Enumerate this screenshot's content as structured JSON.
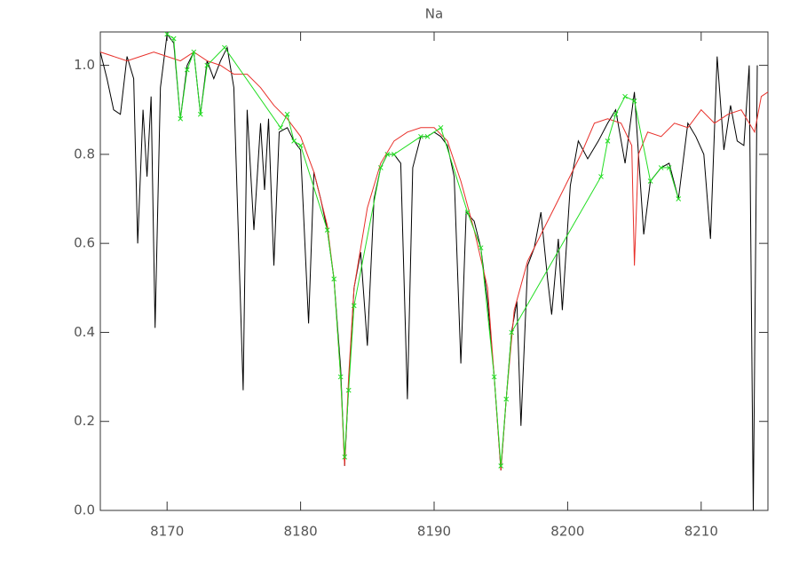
{
  "chart_data": {
    "type": "line",
    "title": "Na",
    "xlim": [
      8165,
      8215
    ],
    "xticks": [
      8170,
      8180,
      8190,
      8200,
      8210
    ],
    "ylim": [
      0,
      1.075
    ],
    "yticks": [
      {
        "value": 0,
        "label": "0.0"
      },
      0.2,
      0.4,
      0.6,
      0.8,
      {
        "value": 1,
        "label": "1.0"
      }
    ],
    "series": [
      {
        "color": "#000000",
        "x": [
          8165,
          8165.5,
          8166,
          8166.5,
          8167,
          8167.5,
          8167.8,
          8168.2,
          8168.5,
          8168.8,
          8169.1,
          8169.5,
          8170,
          8170.5,
          8171,
          8171.5,
          8172,
          8172.5,
          8173,
          8173.5,
          8174,
          8174.5,
          8175,
          8175.7,
          8176,
          8176.5,
          8177,
          8177.3,
          8177.6,
          8178,
          8178.4,
          8179,
          8179.5,
          8180,
          8180.6,
          8181,
          8181.5,
          8182,
          8182.5,
          8183,
          8183.3,
          8183.6,
          8184,
          8184.5,
          8185,
          8185.5,
          8186,
          8186.5,
          8187,
          8187.5,
          8188,
          8188.4,
          8189,
          8189.5,
          8190,
          8190.5,
          8191,
          8191.5,
          8192,
          8192.4,
          8193,
          8193.5,
          8194,
          8194.5,
          8195,
          8195.4,
          8195.8,
          8196.2,
          8196.5,
          8197,
          8197.5,
          8198,
          8198.5,
          8198.8,
          8199.3,
          8199.6,
          8200.2,
          8200.8,
          8201.5,
          8202.3,
          8203,
          8203.6,
          8204.3,
          8205,
          8205.7,
          8206.2,
          8207,
          8207.6,
          8208.3,
          8209,
          8209.6,
          8210.2,
          8210.7,
          8211.2,
          8211.7,
          8212.2,
          8212.7,
          8213.2,
          8213.6,
          8213.9,
          8214.2
        ],
        "values": [
          1.03,
          0.97,
          0.9,
          0.89,
          1.02,
          0.97,
          0.6,
          0.9,
          0.75,
          0.93,
          0.41,
          0.95,
          1.07,
          1.05,
          0.88,
          1.0,
          1.03,
          0.89,
          1.01,
          0.97,
          1.01,
          1.04,
          0.95,
          0.27,
          0.9,
          0.63,
          0.87,
          0.72,
          0.88,
          0.55,
          0.85,
          0.86,
          0.83,
          0.81,
          0.42,
          0.76,
          0.7,
          0.63,
          0.52,
          0.32,
          0.1,
          0.28,
          0.5,
          0.58,
          0.37,
          0.7,
          0.77,
          0.8,
          0.8,
          0.78,
          0.25,
          0.77,
          0.84,
          0.84,
          0.85,
          0.84,
          0.82,
          0.75,
          0.33,
          0.67,
          0.65,
          0.59,
          0.47,
          0.3,
          0.09,
          0.25,
          0.4,
          0.47,
          0.19,
          0.55,
          0.59,
          0.67,
          0.52,
          0.44,
          0.61,
          0.45,
          0.73,
          0.83,
          0.79,
          0.83,
          0.87,
          0.9,
          0.78,
          0.94,
          0.62,
          0.74,
          0.77,
          0.78,
          0.7,
          0.87,
          0.84,
          0.8,
          0.61,
          1.02,
          0.81,
          0.91,
          0.83,
          0.82,
          1.0,
          0.0,
          1.0
        ]
      },
      {
        "color": "#e8302a",
        "x": [
          8165,
          8167,
          8168,
          8169,
          8170,
          8171,
          8172,
          8173,
          8174,
          8175,
          8176,
          8177,
          8178,
          8179,
          8180,
          8181,
          8182,
          8182.5,
          8183,
          8183.3,
          8183.6,
          8184,
          8185,
          8186,
          8187,
          8188,
          8189,
          8190,
          8191,
          8192,
          8193,
          8194,
          8194.5,
          8195,
          8195.4,
          8196,
          8197,
          8198,
          8199,
          8200,
          8201,
          8202,
          8203,
          8204,
          8204.8,
          8205,
          8205.3,
          8206,
          8207,
          8208,
          8209,
          8210,
          8211,
          8212,
          8213,
          8214,
          8214.5,
          8215
        ],
        "values": [
          1.03,
          1.01,
          1.02,
          1.03,
          1.02,
          1.01,
          1.03,
          1.01,
          1.0,
          0.98,
          0.98,
          0.95,
          0.91,
          0.88,
          0.84,
          0.76,
          0.64,
          0.52,
          0.3,
          0.1,
          0.3,
          0.5,
          0.68,
          0.78,
          0.83,
          0.85,
          0.86,
          0.86,
          0.83,
          0.74,
          0.63,
          0.5,
          0.3,
          0.09,
          0.25,
          0.45,
          0.56,
          0.62,
          0.68,
          0.74,
          0.8,
          0.87,
          0.88,
          0.87,
          0.82,
          0.55,
          0.8,
          0.85,
          0.84,
          0.87,
          0.86,
          0.9,
          0.87,
          0.89,
          0.9,
          0.85,
          0.93,
          0.94
        ]
      },
      {
        "color": "#22dd22",
        "marker": true,
        "x": [
          8170,
          8170.5,
          8171,
          8171.5,
          8172,
          8172.5,
          8173,
          8174.3,
          8178.5,
          8179,
          8179.5,
          8180,
          8182,
          8182.5,
          8183,
          8183.3,
          8183.6,
          8184,
          8186,
          8186.5,
          8187,
          8189,
          8189.5,
          8190.5,
          8192.5,
          8193.5,
          8194.5,
          8195,
          8195.4,
          8195.8,
          8202.5,
          8203,
          8203.6,
          8204.3,
          8205,
          8206.2,
          8207,
          8207.6,
          8208.3
        ],
        "values": [
          1.07,
          1.06,
          0.88,
          0.99,
          1.03,
          0.89,
          1.0,
          1.04,
          0.86,
          0.89,
          0.83,
          0.82,
          0.63,
          0.52,
          0.3,
          0.12,
          0.27,
          0.46,
          0.77,
          0.8,
          0.8,
          0.84,
          0.84,
          0.86,
          0.67,
          0.59,
          0.3,
          0.1,
          0.25,
          0.4,
          0.75,
          0.83,
          0.89,
          0.93,
          0.92,
          0.74,
          0.77,
          0.77,
          0.7
        ]
      }
    ]
  }
}
